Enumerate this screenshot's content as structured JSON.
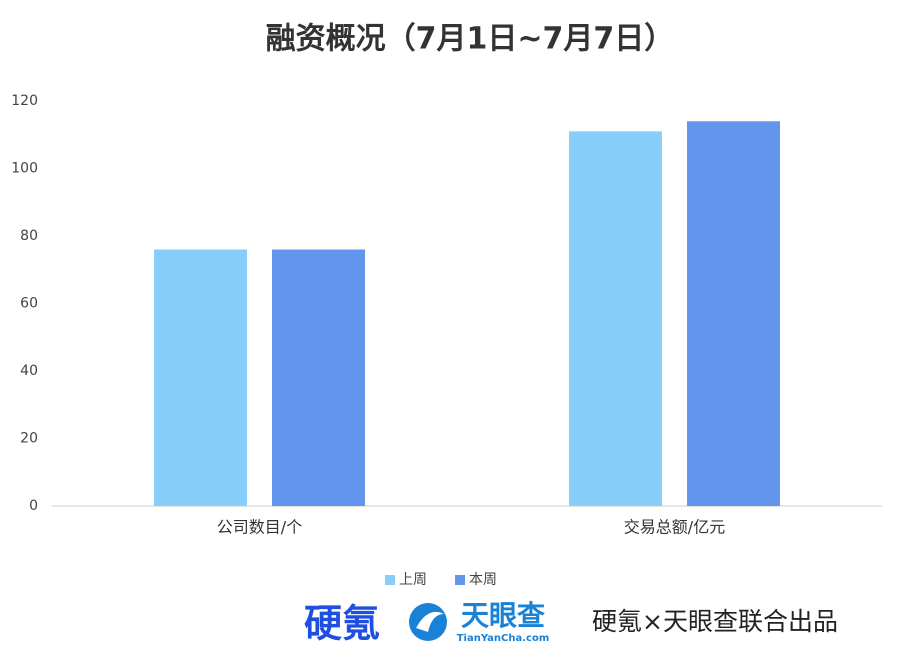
{
  "chart_data": {
    "type": "bar",
    "title": "融资概况（7月1日~7月7日）",
    "categories": [
      "公司数目/个",
      "交易总额/亿元"
    ],
    "series": [
      {
        "name": "上周",
        "color": "#87cefa",
        "values": [
          76,
          111
        ]
      },
      {
        "name": "本周",
        "color": "#6495ed",
        "values": [
          76,
          114
        ]
      }
    ],
    "ylim": [
      0,
      120
    ],
    "yticks": [
      0,
      20,
      40,
      60,
      80,
      100,
      120
    ],
    "grid": false,
    "legend": "bottom"
  },
  "footer": {
    "brand": "硬氪",
    "partner": "天眼查",
    "partner_url": "TianYanCha.com",
    "credit": "硬氪×天眼查联合出品"
  }
}
